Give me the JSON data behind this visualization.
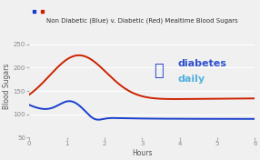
{
  "title": "Non Diabetic (Blue) v. Diabetic (Red) Mealtime Blood Sugars",
  "xlabel": "Hours",
  "ylabel": "Blood Sugars",
  "xlim": [
    0,
    6
  ],
  "ylim": [
    50,
    270
  ],
  "yticks": [
    50,
    100,
    150,
    200,
    250
  ],
  "xticks": [
    0,
    1,
    2,
    3,
    4,
    5,
    6
  ],
  "blue_color": "#1a3fcc",
  "red_color": "#cc2200",
  "background_color": "#f0f0f0",
  "grid_color": "#ffffff",
  "watermark1": "diabetes",
  "watermark2": "daily",
  "watermark_color1": "#1a3fcc",
  "watermark_color2": "#44aadd",
  "title_fontsize": 5.0,
  "label_fontsize": 5.5,
  "tick_fontsize": 5.0
}
